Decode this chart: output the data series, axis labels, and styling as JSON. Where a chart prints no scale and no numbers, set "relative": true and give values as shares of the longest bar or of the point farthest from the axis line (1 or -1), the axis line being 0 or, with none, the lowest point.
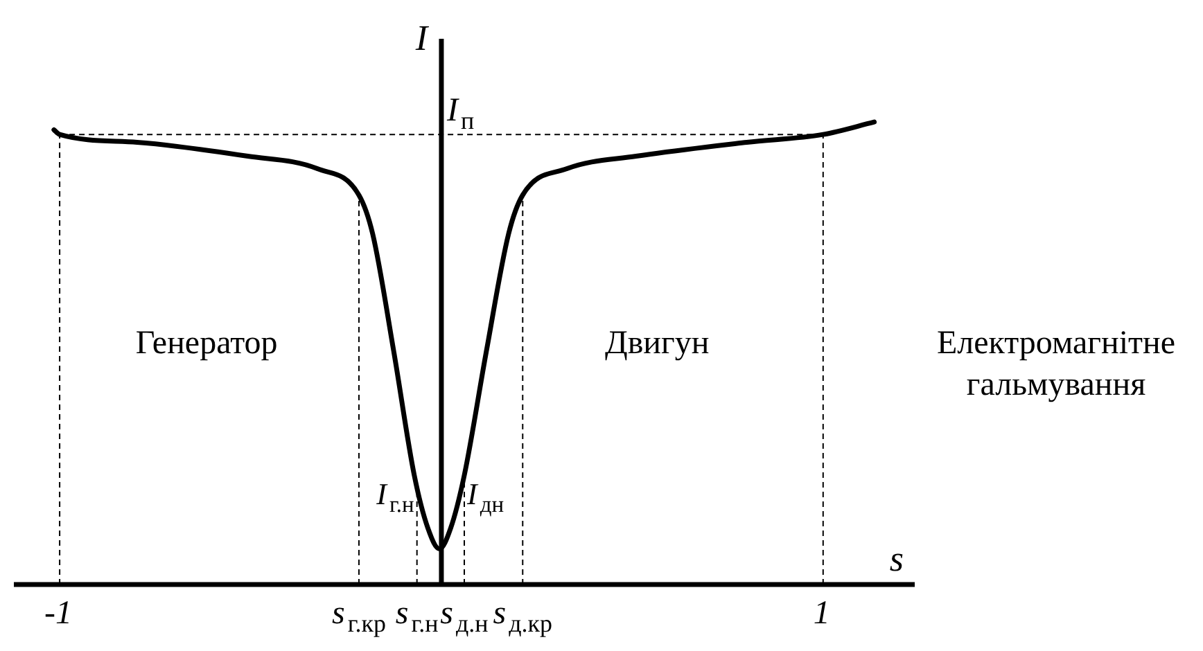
{
  "chart_data": {
    "type": "line",
    "relative": true,
    "xlabel": "s",
    "ylabel": "I",
    "xlim": [
      -1.12,
      1.24
    ],
    "xticks": [
      {
        "value": -1,
        "label": "-1"
      },
      {
        "value": -0.216,
        "label": "s$_{г.кр}$"
      },
      {
        "value": -0.064,
        "label": "s$_{г.н}$"
      },
      {
        "value": 0.06,
        "label": "s$_{д.н}$"
      },
      {
        "value": 0.213,
        "label": "s$_{д.кр}$"
      },
      {
        "value": 1,
        "label": "1"
      }
    ],
    "series": [
      {
        "color": "#000000",
        "x": [
          -1.015,
          -1,
          -0.797,
          -0.507,
          -0.325,
          -0.216,
          -0.18,
          -0.125,
          -0.071,
          -0.035,
          -0.005,
          0.024,
          0.06,
          0.118,
          0.176,
          0.213,
          0.329,
          0.51,
          0.8,
          1,
          1.134
        ],
        "values": [
          0.983,
          0.973,
          0.956,
          0.926,
          0.899,
          0.842,
          0.758,
          0.505,
          0.236,
          0.121,
          0.077,
          0.121,
          0.236,
          0.505,
          0.758,
          0.842,
          0.899,
          0.926,
          0.956,
          0.973,
          1
        ]
      }
    ],
    "ref_lines": [
      {
        "axis": "y",
        "value": 0.973,
        "label": "I$_{п}$",
        "line_style": "dashed",
        "color": "#000000"
      },
      {
        "axis": "x",
        "value": -1,
        "line_style": "dashed",
        "color": "#000000"
      },
      {
        "axis": "x",
        "value": -0.216,
        "line_style": "dashed",
        "color": "#000000"
      },
      {
        "axis": "x",
        "value": -0.064,
        "line_style": "dashed",
        "color": "#000000"
      },
      {
        "axis": "x",
        "value": 0.06,
        "line_style": "dashed",
        "color": "#000000"
      },
      {
        "axis": "x",
        "value": 0.213,
        "line_style": "dashed",
        "color": "#000000"
      },
      {
        "axis": "x",
        "value": 1,
        "line_style": "dashed",
        "color": "#000000"
      }
    ],
    "annotations": [
      "Генератор",
      "Двигун",
      "Електромагнітне\nгальмування",
      {
        "text": "I$_{г.н}$",
        "x": -0.064,
        "y": 0.168
      },
      {
        "text": "I$_{дн}$",
        "x": 0.06,
        "y": 0.168
      }
    ],
    "grid": false,
    "legend": false,
    "marker": "none",
    "line_style": "solid"
  }
}
